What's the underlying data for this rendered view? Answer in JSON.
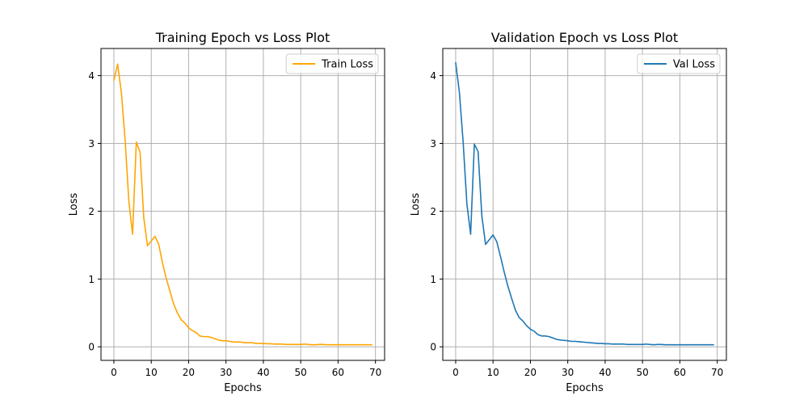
{
  "chart_data": [
    {
      "type": "line",
      "title": "Training Epoch vs Loss Plot",
      "xlabel": "Epochs",
      "ylabel": "Loss",
      "xlim": [
        -3.45,
        72.45
      ],
      "ylim": [
        -0.2,
        4.4
      ],
      "xticks": [
        0,
        10,
        20,
        30,
        40,
        50,
        60,
        70
      ],
      "yticks": [
        0,
        1,
        2,
        3,
        4
      ],
      "grid": true,
      "legend_position": "top-right",
      "color": "#ffa500",
      "series": [
        {
          "name": "Train Loss",
          "x": [
            0,
            1,
            2,
            3,
            4,
            5,
            6,
            7,
            8,
            9,
            10,
            11,
            12,
            13,
            14,
            15,
            16,
            17,
            18,
            19,
            20,
            21,
            22,
            23,
            24,
            25,
            26,
            27,
            28,
            29,
            30,
            31,
            32,
            33,
            34,
            35,
            36,
            37,
            38,
            39,
            40,
            41,
            42,
            43,
            44,
            45,
            46,
            47,
            48,
            49,
            50,
            51,
            52,
            53,
            54,
            55,
            56,
            57,
            58,
            59,
            60,
            61,
            62,
            63,
            64,
            65,
            66,
            67,
            68,
            69
          ],
          "values": [
            3.93,
            4.17,
            3.75,
            3.05,
            2.15,
            1.66,
            3.02,
            2.87,
            1.9,
            1.49,
            1.56,
            1.63,
            1.51,
            1.24,
            1.01,
            0.82,
            0.63,
            0.5,
            0.4,
            0.35,
            0.28,
            0.24,
            0.21,
            0.16,
            0.15,
            0.15,
            0.14,
            0.12,
            0.1,
            0.09,
            0.09,
            0.08,
            0.07,
            0.07,
            0.07,
            0.06,
            0.06,
            0.06,
            0.05,
            0.05,
            0.05,
            0.045,
            0.045,
            0.04,
            0.04,
            0.04,
            0.035,
            0.035,
            0.035,
            0.035,
            0.035,
            0.04,
            0.035,
            0.03,
            0.03,
            0.035,
            0.035,
            0.03,
            0.03,
            0.03,
            0.03,
            0.03,
            0.03,
            0.03,
            0.03,
            0.03,
            0.03,
            0.03,
            0.03,
            0.03
          ]
        }
      ]
    },
    {
      "type": "line",
      "title": "Validation Epoch vs Loss Plot",
      "xlabel": "Epochs",
      "ylabel": "Loss",
      "xlim": [
        -3.45,
        72.45
      ],
      "ylim": [
        -0.2,
        4.4
      ],
      "xticks": [
        0,
        10,
        20,
        30,
        40,
        50,
        60,
        70
      ],
      "yticks": [
        0,
        1,
        2,
        3,
        4
      ],
      "grid": true,
      "legend_position": "top-right",
      "color": "#1f77b4",
      "series": [
        {
          "name": "Val Loss",
          "x": [
            0,
            1,
            2,
            3,
            4,
            5,
            6,
            7,
            8,
            9,
            10,
            11,
            12,
            13,
            14,
            15,
            16,
            17,
            18,
            19,
            20,
            21,
            22,
            23,
            24,
            25,
            26,
            27,
            28,
            29,
            30,
            31,
            32,
            33,
            34,
            35,
            36,
            37,
            38,
            39,
            40,
            41,
            42,
            43,
            44,
            45,
            46,
            47,
            48,
            49,
            50,
            51,
            52,
            53,
            54,
            55,
            56,
            57,
            58,
            59,
            60,
            61,
            62,
            63,
            64,
            65,
            66,
            67,
            68,
            69
          ],
          "values": [
            4.19,
            3.75,
            3.02,
            2.11,
            1.66,
            2.99,
            2.88,
            1.93,
            1.51,
            1.58,
            1.65,
            1.55,
            1.33,
            1.1,
            0.89,
            0.71,
            0.54,
            0.43,
            0.38,
            0.31,
            0.26,
            0.23,
            0.18,
            0.16,
            0.16,
            0.15,
            0.13,
            0.11,
            0.1,
            0.095,
            0.09,
            0.08,
            0.08,
            0.075,
            0.07,
            0.065,
            0.06,
            0.055,
            0.05,
            0.05,
            0.045,
            0.045,
            0.04,
            0.04,
            0.04,
            0.04,
            0.035,
            0.035,
            0.035,
            0.035,
            0.035,
            0.04,
            0.035,
            0.03,
            0.035,
            0.035,
            0.03,
            0.03,
            0.03,
            0.03,
            0.03,
            0.03,
            0.03,
            0.03,
            0.03,
            0.03,
            0.03,
            0.03,
            0.03,
            0.03
          ]
        }
      ]
    }
  ]
}
